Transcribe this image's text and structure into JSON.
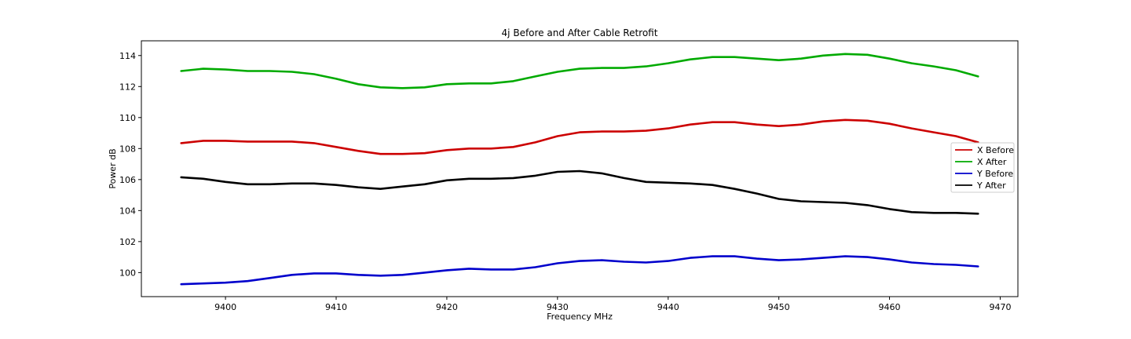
{
  "chart_data": {
    "type": "line",
    "title": "4j Before and After Cable Retrofit",
    "xlabel": "Frequency MHz",
    "ylabel": "Power dB",
    "xlim": [
      9392.4,
      9471.6
    ],
    "ylim": [
      98.45,
      114.95
    ],
    "xticks": [
      9400,
      9410,
      9420,
      9430,
      9440,
      9450,
      9460,
      9470
    ],
    "yticks": [
      100,
      102,
      104,
      106,
      108,
      110,
      112,
      114
    ],
    "grid": false,
    "legend": "center-right",
    "series": [
      {
        "name": "X Before",
        "color": "#cc0000",
        "x": [
          9396,
          9398,
          9400,
          9402,
          9404,
          9406,
          9408,
          9410,
          9412,
          9414,
          9416,
          9418,
          9420,
          9422,
          9424,
          9426,
          9428,
          9430,
          9432,
          9434,
          9436,
          9438,
          9440,
          9442,
          9444,
          9446,
          9448,
          9450,
          9452,
          9454,
          9456,
          9458,
          9460,
          9462,
          9464,
          9466,
          9468
        ],
        "y": [
          108.35,
          108.5,
          108.5,
          108.45,
          108.45,
          108.45,
          108.35,
          108.1,
          107.85,
          107.65,
          107.65,
          107.7,
          107.9,
          108.0,
          108.0,
          108.1,
          108.4,
          108.8,
          109.05,
          109.1,
          109.1,
          109.15,
          109.3,
          109.55,
          109.7,
          109.7,
          109.55,
          109.45,
          109.55,
          109.75,
          109.85,
          109.8,
          109.6,
          109.3,
          109.05,
          108.8,
          108.4
        ]
      },
      {
        "name": "X After",
        "color": "#00aa00",
        "x": [
          9396,
          9398,
          9400,
          9402,
          9404,
          9406,
          9408,
          9410,
          9412,
          9414,
          9416,
          9418,
          9420,
          9422,
          9424,
          9426,
          9428,
          9430,
          9432,
          9434,
          9436,
          9438,
          9440,
          9442,
          9444,
          9446,
          9448,
          9450,
          9452,
          9454,
          9456,
          9458,
          9460,
          9462,
          9464,
          9466,
          9468
        ],
        "y": [
          113.0,
          113.15,
          113.1,
          113.0,
          113.0,
          112.95,
          112.8,
          112.5,
          112.15,
          111.95,
          111.9,
          111.95,
          112.15,
          112.2,
          112.2,
          112.35,
          112.65,
          112.95,
          113.15,
          113.2,
          113.2,
          113.3,
          113.5,
          113.75,
          113.9,
          113.9,
          113.8,
          113.7,
          113.8,
          114.0,
          114.1,
          114.05,
          113.8,
          113.5,
          113.3,
          113.05,
          112.65
        ]
      },
      {
        "name": "Y Before",
        "color": "#0000cc",
        "x": [
          9396,
          9398,
          9400,
          9402,
          9404,
          9406,
          9408,
          9410,
          9412,
          9414,
          9416,
          9418,
          9420,
          9422,
          9424,
          9426,
          9428,
          9430,
          9432,
          9434,
          9436,
          9438,
          9440,
          9442,
          9444,
          9446,
          9448,
          9450,
          9452,
          9454,
          9456,
          9458,
          9460,
          9462,
          9464,
          9466,
          9468
        ],
        "y": [
          99.25,
          99.3,
          99.35,
          99.45,
          99.65,
          99.85,
          99.95,
          99.95,
          99.85,
          99.8,
          99.85,
          100.0,
          100.15,
          100.25,
          100.2,
          100.2,
          100.35,
          100.6,
          100.75,
          100.8,
          100.7,
          100.65,
          100.75,
          100.95,
          101.05,
          101.05,
          100.9,
          100.8,
          100.85,
          100.95,
          101.05,
          101.0,
          100.85,
          100.65,
          100.55,
          100.5,
          100.4
        ]
      },
      {
        "name": "Y After",
        "color": "#000000",
        "x": [
          9396,
          9398,
          9400,
          9402,
          9404,
          9406,
          9408,
          9410,
          9412,
          9414,
          9416,
          9418,
          9420,
          9422,
          9424,
          9426,
          9428,
          9430,
          9432,
          9434,
          9436,
          9438,
          9440,
          9442,
          9444,
          9446,
          9448,
          9450,
          9452,
          9454,
          9456,
          9458,
          9460,
          9462,
          9464,
          9466,
          9468
        ],
        "y": [
          106.15,
          106.05,
          105.85,
          105.7,
          105.7,
          105.75,
          105.75,
          105.65,
          105.5,
          105.4,
          105.55,
          105.7,
          105.95,
          106.05,
          106.05,
          106.1,
          106.25,
          106.5,
          106.55,
          106.4,
          106.1,
          105.85,
          105.8,
          105.75,
          105.65,
          105.4,
          105.1,
          104.75,
          104.6,
          104.55,
          104.5,
          104.35,
          104.1,
          103.9,
          103.85,
          103.85,
          103.8
        ]
      }
    ]
  }
}
